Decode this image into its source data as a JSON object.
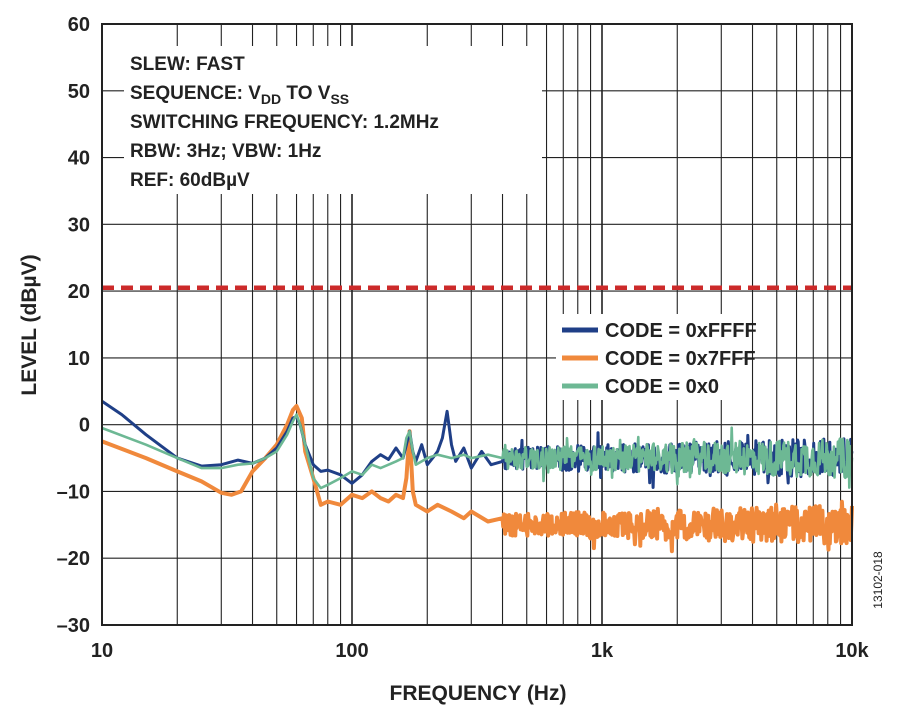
{
  "chart_data": {
    "type": "line",
    "title": "",
    "xlabel": "FREQUENCY (Hz)",
    "ylabel": "LEVEL (dBµV)",
    "xscale": "log",
    "xlim": [
      10,
      10000
    ],
    "ylim": [
      -30,
      60
    ],
    "x_ticks": [
      {
        "value": 10,
        "label": "10"
      },
      {
        "value": 100,
        "label": "100"
      },
      {
        "value": 1000,
        "label": "1k"
      },
      {
        "value": 10000,
        "label": "10k"
      }
    ],
    "y_ticks": [
      {
        "value": 60,
        "label": "60"
      },
      {
        "value": 50,
        "label": "50"
      },
      {
        "value": 40,
        "label": "40"
      },
      {
        "value": 30,
        "label": "30"
      },
      {
        "value": 20,
        "label": "20"
      },
      {
        "value": 10,
        "label": "10"
      },
      {
        "value": 0,
        "label": "0"
      },
      {
        "value": -10,
        "label": "–10"
      },
      {
        "value": -20,
        "label": "–20"
      },
      {
        "value": -30,
        "label": "–30"
      }
    ],
    "grid": true,
    "legend_position": "right",
    "annotations": {
      "slew": "SLEW: FAST",
      "sequence_prefix": "SEQUENCE: V",
      "sequence_sub1": "DD",
      "sequence_mid": " TO V",
      "sequence_sub2": "SS",
      "switching": "SWITCHING FREQUENCY: 1.2MHz",
      "rbw": "RBW: 3Hz; VBW: 1Hz",
      "ref": "REF: 60dBµV"
    },
    "reference_line": {
      "y": 20.5,
      "color": "#cc2a2a",
      "style": "dashed"
    },
    "figure_id": "13102-018",
    "series": [
      {
        "name": "CODE = 0xFFFF",
        "color": "#1f3f87",
        "noise_floor": -5,
        "x": [
          10,
          12,
          15,
          20,
          25,
          30,
          35,
          40,
          45,
          50,
          55,
          58,
          60,
          62,
          65,
          70,
          75,
          80,
          90,
          100,
          110,
          120,
          130,
          140,
          150,
          160,
          165,
          170,
          175,
          180,
          190,
          200,
          210,
          220,
          230,
          240,
          250,
          260,
          280,
          300,
          330,
          360,
          400
        ],
        "y": [
          3.5,
          1.5,
          -1.5,
          -5,
          -6.2,
          -6,
          -5.3,
          -5.8,
          -5,
          -3.5,
          -1,
          1,
          1.2,
          0,
          -3,
          -6,
          -7,
          -6.8,
          -7.5,
          -8.8,
          -7.5,
          -5.5,
          -4.5,
          -5.2,
          -3.5,
          -5,
          -3,
          -1,
          -4,
          -5.5,
          -3,
          -6,
          -5,
          -4,
          -2,
          2,
          -3,
          -5.5,
          -3.5,
          -6.5,
          -4,
          -6,
          -5.5
        ]
      },
      {
        "name": "CODE = 0x7FFF",
        "color": "#f0893c",
        "noise_floor": -15,
        "x": [
          10,
          15,
          20,
          25,
          30,
          33,
          36,
          40,
          45,
          50,
          55,
          58,
          60,
          63,
          65,
          70,
          75,
          80,
          90,
          100,
          110,
          120,
          130,
          140,
          150,
          160,
          165,
          170,
          175,
          180,
          200,
          220,
          250,
          280,
          300,
          350,
          400
        ],
        "y": [
          -2.5,
          -5,
          -7,
          -8.5,
          -10.2,
          -10.5,
          -10,
          -7,
          -5,
          -3,
          0,
          2.2,
          2.8,
          1,
          -4,
          -8,
          -12,
          -11.5,
          -12,
          -10.5,
          -11,
          -10,
          -11,
          -11.5,
          -10.5,
          -11,
          -8,
          -1,
          -10,
          -12,
          -13,
          -12,
          -13,
          -14,
          -13,
          -14.5,
          -14
        ]
      },
      {
        "name": "CODE = 0x0",
        "color": "#6db894",
        "noise_floor": -5,
        "x": [
          10,
          15,
          20,
          25,
          30,
          35,
          40,
          45,
          50,
          55,
          58,
          60,
          62,
          65,
          70,
          75,
          80,
          90,
          100,
          110,
          120,
          130,
          140,
          150,
          160,
          165,
          170,
          175,
          180,
          200,
          220,
          250,
          280,
          300,
          350,
          400
        ],
        "y": [
          -0.5,
          -3,
          -5,
          -6.5,
          -6.5,
          -6,
          -5.8,
          -5,
          -4,
          -1.5,
          0.5,
          1.5,
          0,
          -3,
          -8,
          -9.5,
          -9,
          -8,
          -7,
          -7.5,
          -6,
          -6.5,
          -6,
          -5.5,
          -5,
          -2,
          -1,
          -4,
          -6,
          -5,
          -4.5,
          -5,
          -4.5,
          -5,
          -4.5,
          -5
        ]
      }
    ]
  }
}
